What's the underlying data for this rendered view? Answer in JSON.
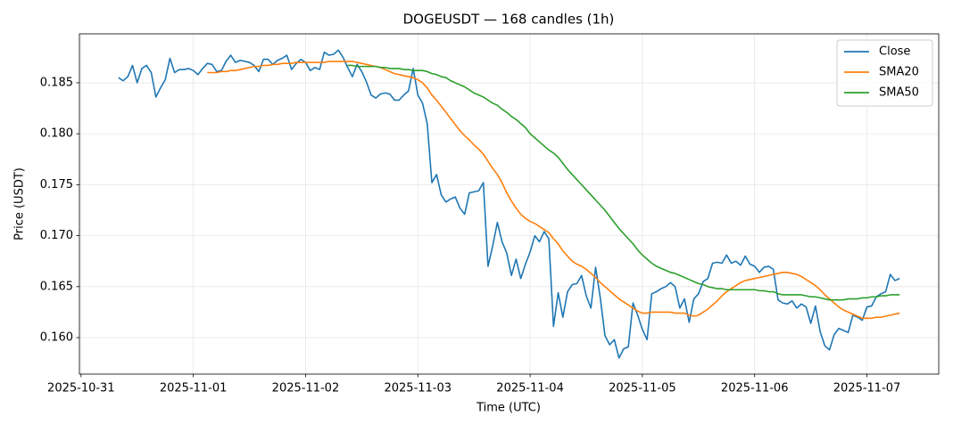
{
  "chart_data": {
    "type": "line",
    "title": "DOGEUSDT — 168 candles (1h)",
    "x_label": "Time (UTC)",
    "y_label": "Price (USDT)",
    "x": [
      "2025-10-31 08:00",
      "2025-10-31 09:00",
      "2025-10-31 10:00",
      "2025-10-31 11:00",
      "2025-10-31 12:00",
      "2025-10-31 13:00",
      "2025-10-31 14:00",
      "2025-10-31 15:00",
      "2025-10-31 16:00",
      "2025-10-31 17:00",
      "2025-10-31 18:00",
      "2025-10-31 19:00",
      "2025-10-31 20:00",
      "2025-10-31 21:00",
      "2025-10-31 22:00",
      "2025-10-31 23:00",
      "2025-11-01 00:00",
      "2025-11-01 01:00",
      "2025-11-01 02:00",
      "2025-11-01 03:00",
      "2025-11-01 04:00",
      "2025-11-01 05:00",
      "2025-11-01 06:00",
      "2025-11-01 07:00",
      "2025-11-01 08:00",
      "2025-11-01 09:00",
      "2025-11-01 10:00",
      "2025-11-01 11:00",
      "2025-11-01 12:00",
      "2025-11-01 13:00",
      "2025-11-01 14:00",
      "2025-11-01 15:00",
      "2025-11-01 16:00",
      "2025-11-01 17:00",
      "2025-11-01 18:00",
      "2025-11-01 19:00",
      "2025-11-01 20:00",
      "2025-11-01 21:00",
      "2025-11-01 22:00",
      "2025-11-01 23:00",
      "2025-11-02 00:00",
      "2025-11-02 01:00",
      "2025-11-02 02:00",
      "2025-11-02 03:00",
      "2025-11-02 04:00",
      "2025-11-02 05:00",
      "2025-11-02 06:00",
      "2025-11-02 07:00",
      "2025-11-02 08:00",
      "2025-11-02 09:00",
      "2025-11-02 10:00",
      "2025-11-02 11:00",
      "2025-11-02 12:00",
      "2025-11-02 13:00",
      "2025-11-02 14:00",
      "2025-11-02 15:00",
      "2025-11-02 16:00",
      "2025-11-02 17:00",
      "2025-11-02 18:00",
      "2025-11-02 19:00",
      "2025-11-02 20:00",
      "2025-11-02 21:00",
      "2025-11-02 22:00",
      "2025-11-02 23:00",
      "2025-11-03 00:00",
      "2025-11-03 01:00",
      "2025-11-03 02:00",
      "2025-11-03 03:00",
      "2025-11-03 04:00",
      "2025-11-03 05:00",
      "2025-11-03 06:00",
      "2025-11-03 07:00",
      "2025-11-03 08:00",
      "2025-11-03 09:00",
      "2025-11-03 10:00",
      "2025-11-03 11:00",
      "2025-11-03 12:00",
      "2025-11-03 13:00",
      "2025-11-03 14:00",
      "2025-11-03 15:00",
      "2025-11-03 16:00",
      "2025-11-03 17:00",
      "2025-11-03 18:00",
      "2025-11-03 19:00",
      "2025-11-03 20:00",
      "2025-11-03 21:00",
      "2025-11-03 22:00",
      "2025-11-03 23:00",
      "2025-11-04 00:00",
      "2025-11-04 01:00",
      "2025-11-04 02:00",
      "2025-11-04 03:00",
      "2025-11-04 04:00",
      "2025-11-04 05:00",
      "2025-11-04 06:00",
      "2025-11-04 07:00",
      "2025-11-04 08:00",
      "2025-11-04 09:00",
      "2025-11-04 10:00",
      "2025-11-04 11:00",
      "2025-11-04 12:00",
      "2025-11-04 13:00",
      "2025-11-04 14:00",
      "2025-11-04 15:00",
      "2025-11-04 16:00",
      "2025-11-04 17:00",
      "2025-11-04 18:00",
      "2025-11-04 19:00",
      "2025-11-04 20:00",
      "2025-11-04 21:00",
      "2025-11-04 22:00",
      "2025-11-04 23:00",
      "2025-11-05 00:00",
      "2025-11-05 01:00",
      "2025-11-05 02:00",
      "2025-11-05 03:00",
      "2025-11-05 04:00",
      "2025-11-05 05:00",
      "2025-11-05 06:00",
      "2025-11-05 07:00",
      "2025-11-05 08:00",
      "2025-11-05 09:00",
      "2025-11-05 10:00",
      "2025-11-05 11:00",
      "2025-11-05 12:00",
      "2025-11-05 13:00",
      "2025-11-05 14:00",
      "2025-11-05 15:00",
      "2025-11-05 16:00",
      "2025-11-05 17:00",
      "2025-11-05 18:00",
      "2025-11-05 19:00",
      "2025-11-05 20:00",
      "2025-11-05 21:00",
      "2025-11-05 22:00",
      "2025-11-05 23:00",
      "2025-11-06 00:00",
      "2025-11-06 01:00",
      "2025-11-06 02:00",
      "2025-11-06 03:00",
      "2025-11-06 04:00",
      "2025-11-06 05:00",
      "2025-11-06 06:00",
      "2025-11-06 07:00",
      "2025-11-06 08:00",
      "2025-11-06 09:00",
      "2025-11-06 10:00",
      "2025-11-06 11:00",
      "2025-11-06 12:00",
      "2025-11-06 13:00",
      "2025-11-06 14:00",
      "2025-11-06 15:00",
      "2025-11-06 16:00",
      "2025-11-06 17:00",
      "2025-11-06 18:00",
      "2025-11-06 19:00",
      "2025-11-06 20:00",
      "2025-11-06 21:00",
      "2025-11-06 22:00",
      "2025-11-06 23:00",
      "2025-11-07 00:00",
      "2025-11-07 01:00",
      "2025-11-07 02:00",
      "2025-11-07 03:00",
      "2025-11-07 04:00",
      "2025-11-07 05:00",
      "2025-11-07 06:00",
      "2025-11-07 07:00"
    ],
    "series": [
      {
        "name": "Close",
        "color": "#1f77b4",
        "values": [
          0.1855,
          0.1852,
          0.1856,
          0.1867,
          0.185,
          0.1864,
          0.1867,
          0.186,
          0.1836,
          0.1845,
          0.1853,
          0.1874,
          0.186,
          0.1863,
          0.1863,
          0.1864,
          0.1862,
          0.1858,
          0.1864,
          0.1869,
          0.1868,
          0.1861,
          0.1862,
          0.1871,
          0.1877,
          0.187,
          0.1872,
          0.1871,
          0.187,
          0.1867,
          0.1861,
          0.1873,
          0.1873,
          0.1868,
          0.1872,
          0.1874,
          0.1877,
          0.1863,
          0.1869,
          0.1873,
          0.187,
          0.1862,
          0.1865,
          0.1863,
          0.188,
          0.1877,
          0.1878,
          0.1882,
          0.1875,
          0.1865,
          0.1856,
          0.1868,
          0.1861,
          0.1851,
          0.1838,
          0.1835,
          0.1839,
          0.184,
          0.1839,
          0.1833,
          0.1833,
          0.1838,
          0.1842,
          0.1864,
          0.1838,
          0.183,
          0.181,
          0.1752,
          0.176,
          0.174,
          0.1733,
          0.1736,
          0.1738,
          0.1727,
          0.1721,
          0.1742,
          0.1743,
          0.1744,
          0.1752,
          0.167,
          0.169,
          0.1713,
          0.1694,
          0.1683,
          0.1661,
          0.1677,
          0.1658,
          0.1672,
          0.1684,
          0.17,
          0.1694,
          0.1704,
          0.1697,
          0.1611,
          0.1644,
          0.162,
          0.1645,
          0.1652,
          0.1653,
          0.1661,
          0.1641,
          0.1629,
          0.1669,
          0.1639,
          0.1602,
          0.1593,
          0.1598,
          0.158,
          0.1589,
          0.1591,
          0.1634,
          0.1622,
          0.1608,
          0.1598,
          0.1643,
          0.1645,
          0.1648,
          0.165,
          0.1654,
          0.165,
          0.1629,
          0.1638,
          0.1615,
          0.1638,
          0.1643,
          0.1655,
          0.1658,
          0.1673,
          0.1674,
          0.1673,
          0.1681,
          0.1673,
          0.1675,
          0.1671,
          0.168,
          0.1672,
          0.167,
          0.1664,
          0.1669,
          0.167,
          0.1667,
          0.1637,
          0.1634,
          0.1633,
          0.1636,
          0.1629,
          0.1633,
          0.163,
          0.1614,
          0.1631,
          0.1606,
          0.1592,
          0.1588,
          0.1603,
          0.1609,
          0.1607,
          0.1605,
          0.1622,
          0.162,
          0.1617,
          0.163,
          0.1631,
          0.164,
          0.1643,
          0.1645,
          0.1662,
          0.1656,
          0.1658
        ]
      },
      {
        "name": "SMA20",
        "color": "#ff7f0e",
        "values": [
          null,
          null,
          null,
          null,
          null,
          null,
          null,
          null,
          null,
          null,
          null,
          null,
          null,
          null,
          null,
          null,
          null,
          null,
          null,
          0.186,
          0.186,
          0.186,
          0.1861,
          0.1861,
          0.1862,
          0.1862,
          0.1863,
          0.1864,
          0.1865,
          0.1866,
          0.1866,
          0.1867,
          0.1867,
          0.1868,
          0.1868,
          0.1869,
          0.1869,
          0.1869,
          0.187,
          0.187,
          0.187,
          0.187,
          0.187,
          0.187,
          0.187,
          0.1871,
          0.1871,
          0.1871,
          0.1871,
          0.1871,
          0.1871,
          0.187,
          0.1869,
          0.1868,
          0.1867,
          0.1866,
          0.1865,
          0.1863,
          0.1861,
          0.1859,
          0.1858,
          0.1857,
          0.1856,
          0.1855,
          0.1853,
          0.185,
          0.1845,
          0.1838,
          0.1833,
          0.1827,
          0.1821,
          0.1815,
          0.1809,
          0.1803,
          0.1798,
          0.1794,
          0.1789,
          0.1785,
          0.178,
          0.1773,
          0.1766,
          0.176,
          0.1752,
          0.1742,
          0.1734,
          0.1727,
          0.1721,
          0.1717,
          0.1714,
          0.1712,
          0.1709,
          0.1706,
          0.1703,
          0.1697,
          0.1692,
          0.1685,
          0.168,
          0.1675,
          0.1672,
          0.167,
          0.1667,
          0.1663,
          0.1659,
          0.1654,
          0.165,
          0.1646,
          0.1642,
          0.1638,
          0.1635,
          0.1632,
          0.1629,
          0.1626,
          0.1624,
          0.1624,
          0.1625,
          0.1625,
          0.1625,
          0.1625,
          0.1625,
          0.1624,
          0.1624,
          0.1624,
          0.1622,
          0.1621,
          0.1622,
          0.1625,
          0.1628,
          0.1632,
          0.1636,
          0.1641,
          0.1645,
          0.1648,
          0.1651,
          0.1654,
          0.1656,
          0.1657,
          0.1658,
          0.1659,
          0.166,
          0.1661,
          0.1662,
          0.1663,
          0.1664,
          0.1664,
          0.1663,
          0.1662,
          0.166,
          0.1657,
          0.1654,
          0.1651,
          0.1647,
          0.1642,
          0.1638,
          0.1634,
          0.163,
          0.1627,
          0.1625,
          0.1623,
          0.1621,
          0.1619,
          0.1619,
          0.1619,
          0.162,
          0.162,
          0.1621,
          0.1622,
          0.1623,
          0.1624
        ]
      },
      {
        "name": "SMA50",
        "color": "#2ca02c",
        "values": [
          null,
          null,
          null,
          null,
          null,
          null,
          null,
          null,
          null,
          null,
          null,
          null,
          null,
          null,
          null,
          null,
          null,
          null,
          null,
          null,
          null,
          null,
          null,
          null,
          null,
          null,
          null,
          null,
          null,
          null,
          null,
          null,
          null,
          null,
          null,
          null,
          null,
          null,
          null,
          null,
          null,
          null,
          null,
          null,
          null,
          null,
          null,
          null,
          null,
          0.1867,
          0.1867,
          0.1866,
          0.1866,
          0.1866,
          0.1866,
          0.1866,
          0.1865,
          0.1865,
          0.1864,
          0.1864,
          0.1864,
          0.1863,
          0.1863,
          0.1862,
          0.1862,
          0.1862,
          0.1861,
          0.1859,
          0.1858,
          0.1856,
          0.1855,
          0.1852,
          0.185,
          0.1848,
          0.1846,
          0.1843,
          0.184,
          0.1838,
          0.1836,
          0.1833,
          0.183,
          0.1828,
          0.1824,
          0.1821,
          0.1817,
          0.1814,
          0.181,
          0.1806,
          0.18,
          0.1796,
          0.1792,
          0.1788,
          0.1784,
          0.1781,
          0.1777,
          0.1771,
          0.1765,
          0.176,
          0.1755,
          0.175,
          0.1745,
          0.174,
          0.1735,
          0.173,
          0.1725,
          0.1719,
          0.1713,
          0.1707,
          0.1702,
          0.1697,
          0.1692,
          0.1686,
          0.1681,
          0.1677,
          0.1673,
          0.167,
          0.1668,
          0.1666,
          0.1664,
          0.1663,
          0.1661,
          0.1659,
          0.1657,
          0.1655,
          0.1653,
          0.1652,
          0.165,
          0.1649,
          0.1648,
          0.1648,
          0.1647,
          0.1647,
          0.1647,
          0.1647,
          0.1647,
          0.1647,
          0.1647,
          0.1646,
          0.1646,
          0.1645,
          0.1645,
          0.1643,
          0.1642,
          0.1642,
          0.1642,
          0.1642,
          0.1642,
          0.1641,
          0.164,
          0.164,
          0.1639,
          0.1638,
          0.1637,
          0.1637,
          0.1637,
          0.1637,
          0.1638,
          0.1638,
          0.1638,
          0.1639,
          0.1639,
          0.164,
          0.164,
          0.1641,
          0.1641,
          0.1642,
          0.1642,
          0.1642
        ]
      }
    ],
    "xlim": [
      "2025-10-30 23:39",
      "2025-11-07 15:21"
    ],
    "xticks": [
      "2025-10-31",
      "2025-11-01",
      "2025-11-02",
      "2025-11-03",
      "2025-11-04",
      "2025-11-05",
      "2025-11-06",
      "2025-11-07"
    ],
    "ylim": [
      0.15642,
      0.1898
    ],
    "yticks": [
      {
        "value": 0.16,
        "label": "0.160"
      },
      0.165,
      {
        "value": 0.17,
        "label": "0.170"
      },
      0.175,
      {
        "value": 0.18,
        "label": "0.180"
      },
      0.185
    ],
    "grid": true,
    "legend": "upper right"
  }
}
